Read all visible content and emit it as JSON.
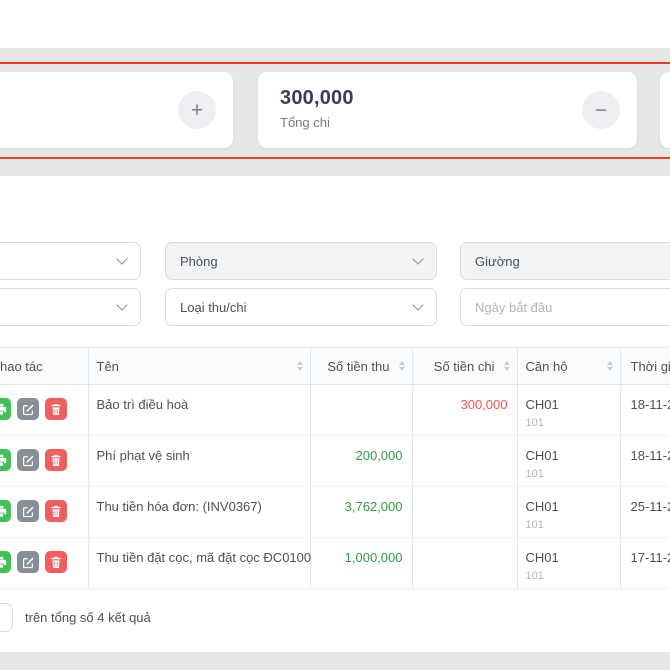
{
  "colors": {
    "highlight_border": "#f33a1e",
    "page_background": "#e6e7e7",
    "income_value": "#2f9e44",
    "expense_value": "#fa5252",
    "print_button": "#40c057",
    "edit_button": "#868e96",
    "delete_button": "#f15e5e"
  },
  "summary_cards": {
    "left_card": {
      "button": "+"
    },
    "expense_card": {
      "value": "300,000",
      "label": "Tổng chi",
      "button": "−"
    }
  },
  "filters": {
    "room_label": "Phòng",
    "bed_label": "Giường",
    "type_label": "Loại thu/chi",
    "start_date_placeholder": "Ngày bắt đầu"
  },
  "table": {
    "columns": [
      {
        "label": "hao tác",
        "sortable": false
      },
      {
        "label": "Tên",
        "sortable": true
      },
      {
        "label": "Số tiền thu",
        "sortable": true
      },
      {
        "label": "Số tiền chi",
        "sortable": true
      },
      {
        "label": "Căn hộ",
        "sortable": true
      },
      {
        "label": "Thời gia",
        "sortable": false
      }
    ],
    "rows": [
      {
        "name": "Bảo trì điều hoà",
        "thu": "",
        "chi": "300,000",
        "can_ho": "CH01",
        "room": "101",
        "thoi_gian": "18-11-2"
      },
      {
        "name": "Phí phạt vệ sinh",
        "thu": "200,000",
        "chi": "",
        "can_ho": "CH01",
        "room": "101",
        "thoi_gian": "18-11-2"
      },
      {
        "name": "Thu tiền hóa đơn: (INV0367)",
        "thu": "3,762,000",
        "chi": "",
        "can_ho": "CH01",
        "room": "101",
        "thoi_gian": "25-11-2"
      },
      {
        "name": "Thu tiền đặt cọc, mã đặt cọc ĐC0100",
        "thu": "1,000,000",
        "chi": "",
        "can_ho": "CH01",
        "room": "101",
        "thoi_gian": "17-11-2"
      }
    ]
  },
  "footer": {
    "results_text": "trên tổng số 4 kết quả"
  }
}
